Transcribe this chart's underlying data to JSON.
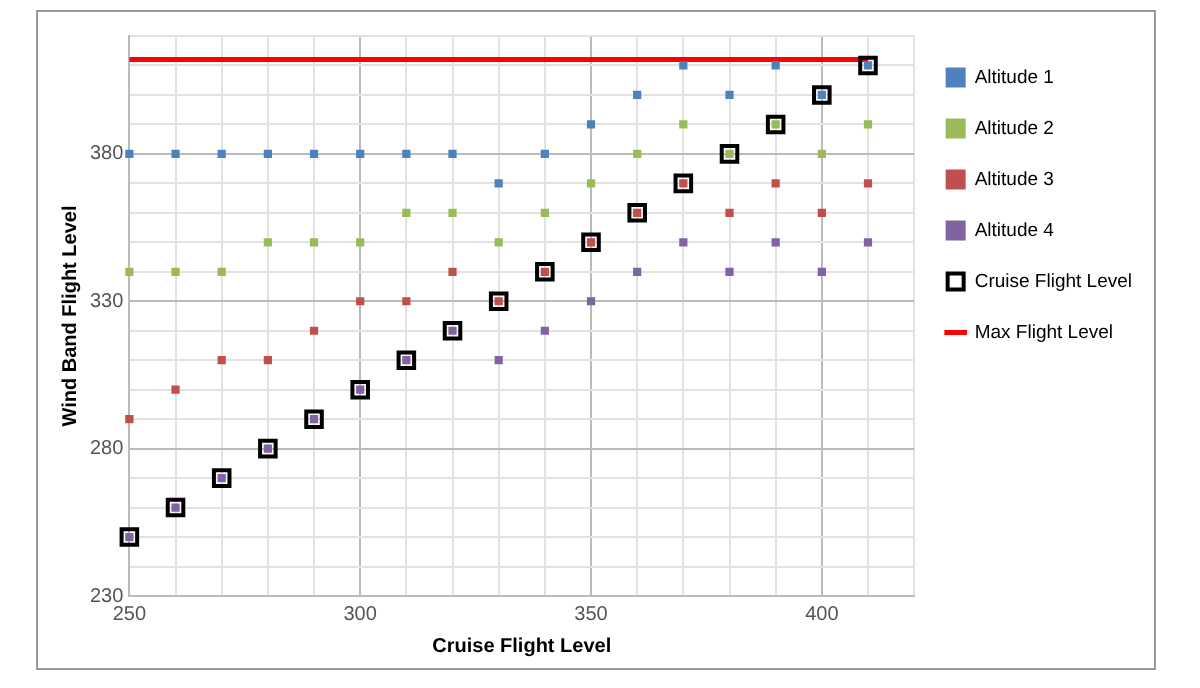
{
  "chart_data": {
    "type": "scatter",
    "xlabel": "Cruise Flight Level",
    "ylabel": "Wind Band Flight Level",
    "x": [
      250,
      260,
      270,
      280,
      290,
      300,
      310,
      320,
      330,
      340,
      350,
      360,
      370,
      380,
      390,
      400,
      410
    ],
    "series": [
      {
        "name": "Altitude 1",
        "color": "#4f81bd",
        "marker": "square",
        "values": [
          380,
          380,
          380,
          380,
          380,
          380,
          380,
          380,
          370,
          380,
          390,
          400,
          410,
          400,
          410,
          400,
          410
        ]
      },
      {
        "name": "Altitude 2",
        "color": "#9bbb59",
        "marker": "square",
        "values": [
          340,
          340,
          340,
          350,
          350,
          350,
          360,
          360,
          350,
          360,
          370,
          380,
          390,
          380,
          390,
          380,
          390
        ]
      },
      {
        "name": "Altitude 3",
        "color": "#c0504d",
        "marker": "square",
        "values": [
          290,
          300,
          310,
          310,
          320,
          330,
          330,
          340,
          330,
          340,
          350,
          360,
          370,
          360,
          370,
          360,
          370
        ]
      },
      {
        "name": "Altitude 4",
        "color": "#8064a2",
        "marker": "square",
        "values": [
          250,
          260,
          270,
          280,
          290,
          300,
          310,
          320,
          310,
          320,
          330,
          340,
          350,
          340,
          350,
          340,
          350
        ]
      },
      {
        "name": "Cruise Flight Level",
        "color": "#000000",
        "marker": "square",
        "values": [
          250,
          260,
          270,
          280,
          290,
          300,
          310,
          320,
          330,
          340,
          350,
          360,
          370,
          380,
          390,
          400,
          410
        ]
      },
      {
        "name": "Max Flight Level",
        "color": "#ff0000",
        "type": "line",
        "marker": "none",
        "x": [
          250,
          410
        ],
        "values": [
          412,
          412
        ]
      }
    ],
    "xlim": [
      250,
      420
    ],
    "ylim": [
      230,
      420
    ],
    "xticks": [
      250,
      {
        "value": 260,
        "label": null
      },
      {
        "value": 270,
        "label": null
      },
      {
        "value": 280,
        "label": null
      },
      {
        "value": 290,
        "label": null
      },
      300,
      {
        "value": 310,
        "label": null
      },
      {
        "value": 320,
        "label": null
      },
      {
        "value": 330,
        "label": null
      },
      {
        "value": 340,
        "label": null
      },
      350,
      {
        "value": 360,
        "label": null
      },
      {
        "value": 370,
        "label": null
      },
      {
        "value": 380,
        "label": null
      },
      {
        "value": 390,
        "label": null
      },
      400,
      {
        "value": 410,
        "label": null
      },
      {
        "value": 420,
        "label": null
      }
    ],
    "yticks": [
      230,
      {
        "value": 240,
        "label": null
      },
      {
        "value": 250,
        "label": null
      },
      {
        "value": 260,
        "label": null
      },
      {
        "value": 270,
        "label": null
      },
      280,
      {
        "value": 290,
        "label": null
      },
      {
        "value": 300,
        "label": null
      },
      {
        "value": 310,
        "label": null
      },
      {
        "value": 320,
        "label": null
      },
      330,
      {
        "value": 340,
        "label": null
      },
      {
        "value": 350,
        "label": null
      },
      {
        "value": 360,
        "label": null
      },
      {
        "value": 370,
        "label": null
      },
      380,
      {
        "value": 390,
        "label": null
      },
      {
        "value": 400,
        "label": null
      },
      {
        "value": 410,
        "label": null
      },
      {
        "value": 420,
        "label": null
      }
    ],
    "grid": true,
    "legend": "right"
  }
}
